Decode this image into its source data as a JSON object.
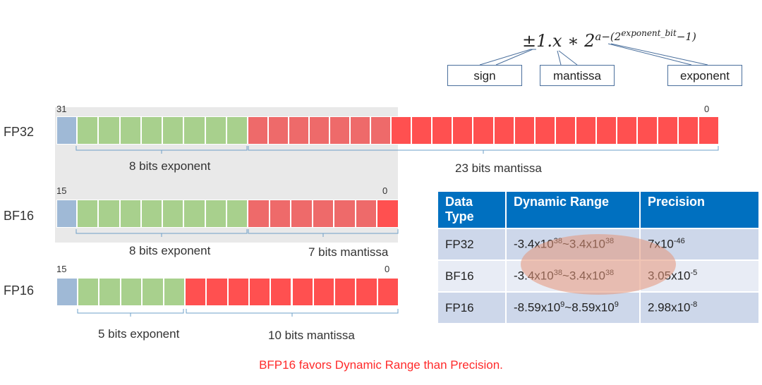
{
  "formula": {
    "pm_one": "±1.",
    "x": "x",
    "mult_two": " ∗ 2",
    "sup_a": "a−(2",
    "sup_exp_bit": "exponent_bit",
    "sup_minus_one": "−1)"
  },
  "tags": {
    "sign": "sign",
    "mantissa": "mantissa",
    "exponent": "exponent"
  },
  "formats": {
    "fp32": {
      "label": "FP32",
      "msb": "31",
      "lsb": "0",
      "exp_label": "8 bits exponent",
      "man_label": "23 bits mantissa",
      "exp_bits": 8,
      "man_bits": 23
    },
    "bf16": {
      "label": "BF16",
      "msb": "15",
      "lsb": "0",
      "exp_label": "8 bits exponent",
      "man_label": "7 bits mantissa",
      "exp_bits": 8,
      "man_bits": 7
    },
    "fp16": {
      "label": "FP16",
      "msb": "15",
      "lsb": "0",
      "exp_label": "5 bits exponent",
      "man_label": "10 bits mantissa",
      "exp_bits": 5,
      "man_bits": 10
    }
  },
  "table": {
    "headers": [
      "Data Type",
      "Dynamic Range",
      "Precision"
    ],
    "rows": [
      {
        "type": "FP32",
        "range_a": "-3.4x10",
        "range_a_exp": "38",
        "range_sep": "~3.4x10",
        "range_b_exp": "38",
        "prec": "7x10",
        "prec_exp": "-46"
      },
      {
        "type": "BF16",
        "range_a": "-3.4x10",
        "range_a_exp": "38",
        "range_sep": "~3.4x10",
        "range_b_exp": "38",
        "prec": "3.05x10",
        "prec_exp": "-5"
      },
      {
        "type": "FP16",
        "range_a": "-8.59x10",
        "range_a_exp": "9",
        "range_sep": "~8.59x10",
        "range_b_exp": "9",
        "prec": "2.98x10",
        "prec_exp": "-8"
      }
    ]
  },
  "footer": "BFP16 favors Dynamic Range than Precision.",
  "colors": {
    "sign": "#9fb9d6",
    "exponent": "#a8d08d",
    "mantissa": "#ff5050",
    "header": "#0070c0",
    "footer": "#ff2a2a",
    "highlight": "#e8a888"
  }
}
